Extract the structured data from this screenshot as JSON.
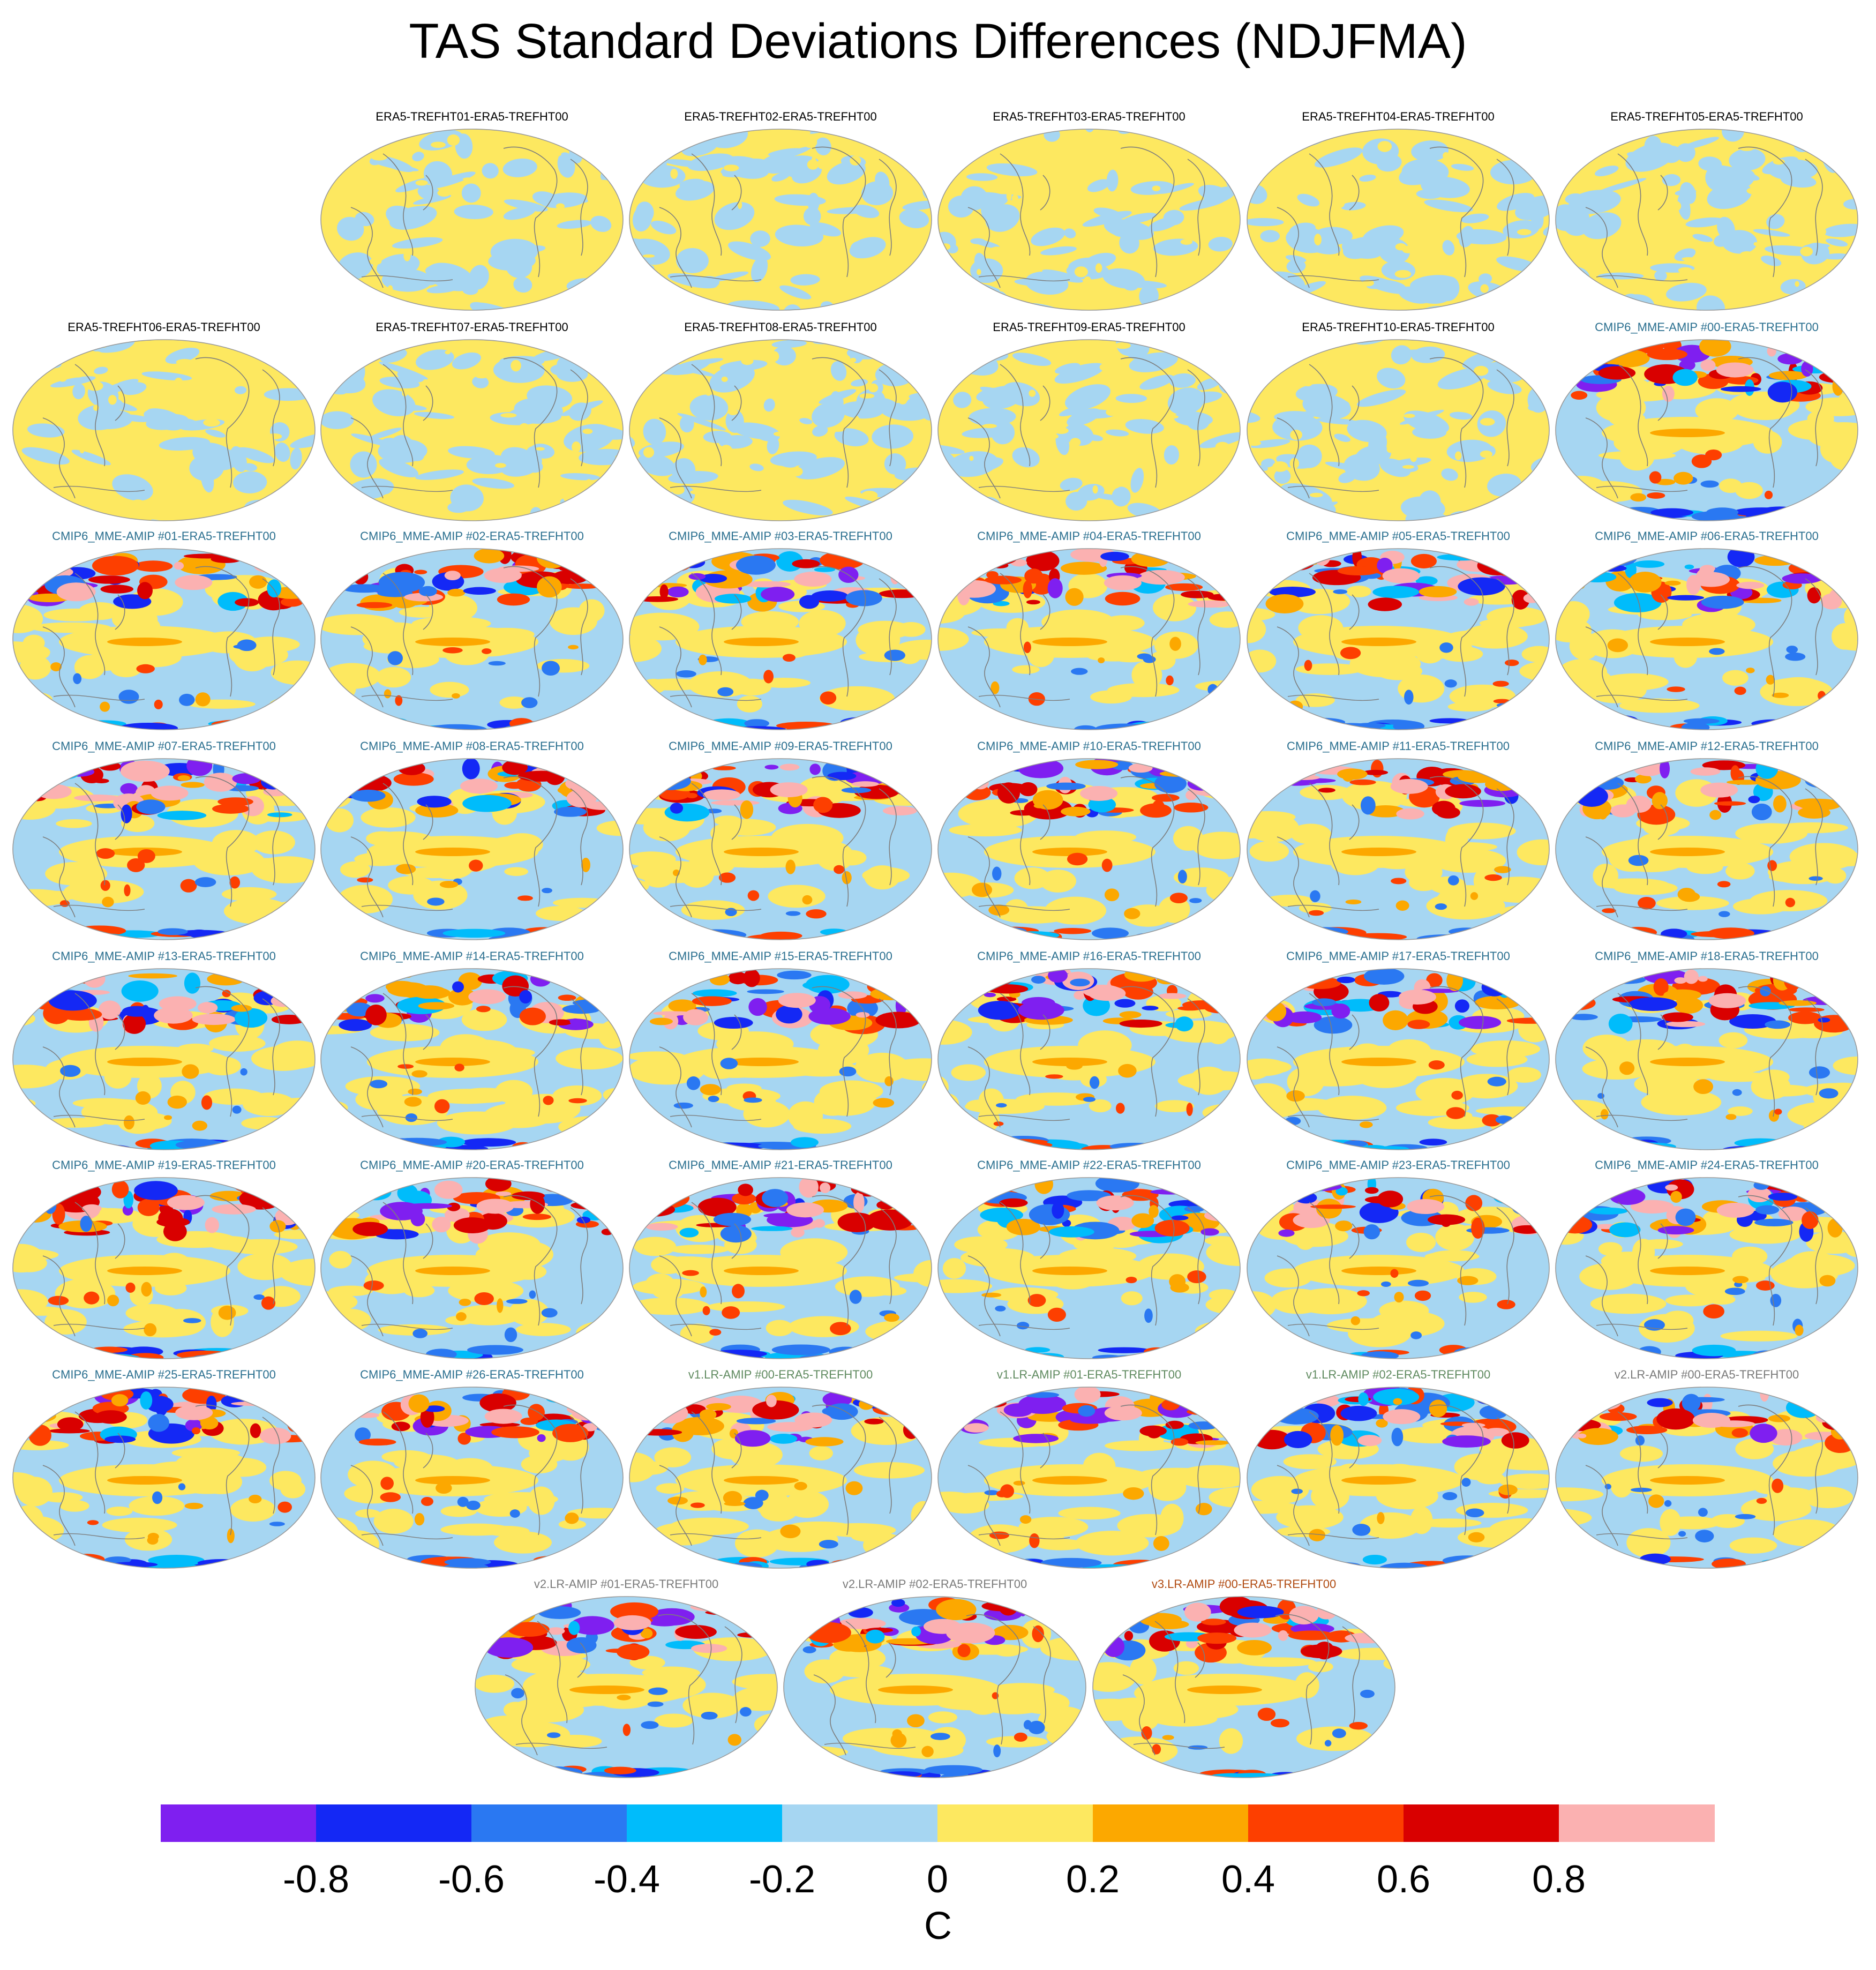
{
  "title": "TAS Standard Deviations Differences (NDJFMA)",
  "panel_rows": [
    [
      {
        "label": "ERA5-TREFHT01-ERA5-TREFHT00",
        "group": "era5"
      },
      {
        "label": "ERA5-TREFHT02-ERA5-TREFHT00",
        "group": "era5"
      },
      {
        "label": "ERA5-TREFHT03-ERA5-TREFHT00",
        "group": "era5"
      },
      {
        "label": "ERA5-TREFHT04-ERA5-TREFHT00",
        "group": "era5"
      },
      {
        "label": "ERA5-TREFHT05-ERA5-TREFHT00",
        "group": "era5"
      }
    ],
    [
      {
        "label": "ERA5-TREFHT06-ERA5-TREFHT00",
        "group": "era5"
      },
      {
        "label": "ERA5-TREFHT07-ERA5-TREFHT00",
        "group": "era5"
      },
      {
        "label": "ERA5-TREFHT08-ERA5-TREFHT00",
        "group": "era5"
      },
      {
        "label": "ERA5-TREFHT09-ERA5-TREFHT00",
        "group": "era5"
      },
      {
        "label": "ERA5-TREFHT10-ERA5-TREFHT00",
        "group": "era5"
      },
      {
        "label": "CMIP6_MME-AMIP  #00-ERA5-TREFHT00",
        "group": "cmip6"
      }
    ],
    [
      {
        "label": "CMIP6_MME-AMIP  #01-ERA5-TREFHT00",
        "group": "cmip6"
      },
      {
        "label": "CMIP6_MME-AMIP  #02-ERA5-TREFHT00",
        "group": "cmip6"
      },
      {
        "label": "CMIP6_MME-AMIP  #03-ERA5-TREFHT00",
        "group": "cmip6"
      },
      {
        "label": "CMIP6_MME-AMIP  #04-ERA5-TREFHT00",
        "group": "cmip6"
      },
      {
        "label": "CMIP6_MME-AMIP  #05-ERA5-TREFHT00",
        "group": "cmip6"
      },
      {
        "label": "CMIP6_MME-AMIP  #06-ERA5-TREFHT00",
        "group": "cmip6"
      }
    ],
    [
      {
        "label": "CMIP6_MME-AMIP  #07-ERA5-TREFHT00",
        "group": "cmip6"
      },
      {
        "label": "CMIP6_MME-AMIP  #08-ERA5-TREFHT00",
        "group": "cmip6"
      },
      {
        "label": "CMIP6_MME-AMIP  #09-ERA5-TREFHT00",
        "group": "cmip6"
      },
      {
        "label": "CMIP6_MME-AMIP  #10-ERA5-TREFHT00",
        "group": "cmip6"
      },
      {
        "label": "CMIP6_MME-AMIP  #11-ERA5-TREFHT00",
        "group": "cmip6"
      },
      {
        "label": "CMIP6_MME-AMIP  #12-ERA5-TREFHT00",
        "group": "cmip6"
      }
    ],
    [
      {
        "label": "CMIP6_MME-AMIP  #13-ERA5-TREFHT00",
        "group": "cmip6"
      },
      {
        "label": "CMIP6_MME-AMIP  #14-ERA5-TREFHT00",
        "group": "cmip6"
      },
      {
        "label": "CMIP6_MME-AMIP  #15-ERA5-TREFHT00",
        "group": "cmip6"
      },
      {
        "label": "CMIP6_MME-AMIP  #16-ERA5-TREFHT00",
        "group": "cmip6"
      },
      {
        "label": "CMIP6_MME-AMIP  #17-ERA5-TREFHT00",
        "group": "cmip6"
      },
      {
        "label": "CMIP6_MME-AMIP  #18-ERA5-TREFHT00",
        "group": "cmip6"
      }
    ],
    [
      {
        "label": "CMIP6_MME-AMIP  #19-ERA5-TREFHT00",
        "group": "cmip6"
      },
      {
        "label": "CMIP6_MME-AMIP  #20-ERA5-TREFHT00",
        "group": "cmip6"
      },
      {
        "label": "CMIP6_MME-AMIP  #21-ERA5-TREFHT00",
        "group": "cmip6"
      },
      {
        "label": "CMIP6_MME-AMIP  #22-ERA5-TREFHT00",
        "group": "cmip6"
      },
      {
        "label": "CMIP6_MME-AMIP  #23-ERA5-TREFHT00",
        "group": "cmip6"
      },
      {
        "label": "CMIP6_MME-AMIP  #24-ERA5-TREFHT00",
        "group": "cmip6"
      }
    ],
    [
      {
        "label": "CMIP6_MME-AMIP  #25-ERA5-TREFHT00",
        "group": "cmip6"
      },
      {
        "label": "CMIP6_MME-AMIP  #26-ERA5-TREFHT00",
        "group": "cmip6"
      },
      {
        "label": "v1.LR-AMIP  #00-ERA5-TREFHT00",
        "group": "v1"
      },
      {
        "label": "v1.LR-AMIP  #01-ERA5-TREFHT00",
        "group": "v1"
      },
      {
        "label": "v1.LR-AMIP  #02-ERA5-TREFHT00",
        "group": "v1"
      },
      {
        "label": "v2.LR-AMIP  #00-ERA5-TREFHT00",
        "group": "v2"
      }
    ],
    [
      {
        "label": "v2.LR-AMIP  #01-ERA5-TREFHT00",
        "group": "v2"
      },
      {
        "label": "v2.LR-AMIP  #02-ERA5-TREFHT00",
        "group": "v2"
      },
      {
        "label": "v3.LR-AMIP  #00-ERA5-TREFHT00",
        "group": "v3"
      }
    ]
  ],
  "label_colors": {
    "era5": "#000000",
    "cmip6": "#2a6f8f",
    "v1": "#5f8a5f",
    "v2": "#7a7a7a",
    "v3": "#b04a10"
  },
  "colorbar": {
    "colors": [
      "#7f1ff0",
      "#1428f5",
      "#2a78f2",
      "#00bcfb",
      "#a6d6f2",
      "#fde860",
      "#fca800",
      "#fd3f00",
      "#d90000",
      "#fbb1b1"
    ],
    "tick_labels": [
      "-0.8",
      "-0.6",
      "-0.4",
      "-0.2",
      "0",
      "0.2",
      "0.4",
      "0.6",
      "0.8"
    ],
    "units": "C"
  }
}
